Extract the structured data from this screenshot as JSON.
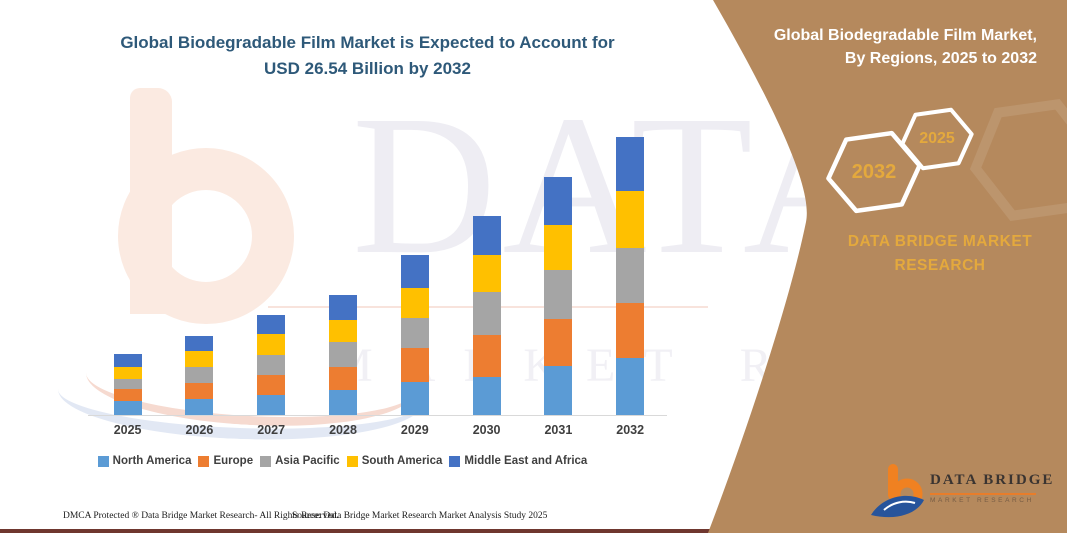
{
  "header": {
    "title_line1": "Global Biodegradable Film Market is Expected to Account for",
    "title_line2": "USD 26.54 Billion by 2032"
  },
  "chart_data": {
    "type": "bar",
    "stacked": true,
    "title": "Global Biodegradable Film Market is Expected to Account for USD 26.54 Billion by 2032",
    "unit": "USD Billion",
    "legend_position": "bottom",
    "y_axis_hidden": true,
    "categories": [
      "2025",
      "2026",
      "2027",
      "2028",
      "2029",
      "2030",
      "2031",
      "2032"
    ],
    "series": [
      {
        "name": "North America",
        "color": "#5B9BD5",
        "values": [
          1.37,
          1.53,
          1.91,
          2.39,
          3.12,
          3.66,
          4.71,
          5.41
        ]
      },
      {
        "name": "Europe",
        "color": "#ED7D31",
        "values": [
          1.12,
          1.49,
          1.91,
          2.23,
          3.25,
          4.02,
          4.47,
          5.3
        ]
      },
      {
        "name": "Asia Pacific",
        "color": "#A5A5A5",
        "values": [
          0.96,
          1.6,
          1.94,
          2.32,
          2.91,
          4.02,
          4.62,
          5.26
        ]
      },
      {
        "name": "South America",
        "color": "#FFC000",
        "values": [
          1.12,
          1.46,
          1.98,
          2.14,
          2.83,
          3.54,
          4.37,
          5.38
        ]
      },
      {
        "name": "Middle East and Africa",
        "color": "#4472C4",
        "values": [
          1.27,
          1.5,
          1.82,
          2.39,
          3.13,
          3.73,
          4.55,
          5.19
        ]
      }
    ],
    "totals": [
      5.84,
      7.58,
      9.56,
      11.47,
      15.24,
      18.97,
      22.72,
      26.54
    ],
    "highlight_value_2032": "USD 26.54 Billion"
  },
  "side_panel": {
    "title_line1": "Global Biodegradable Film Market,",
    "title_line2": "By Regions, 2025 to 2032",
    "hexagon_back_year": "2032",
    "hexagon_front_year": "2025",
    "brand_line1": "DATA BRIDGE MARKET",
    "brand_line2": "RESEARCH"
  },
  "logo": {
    "name": "DATA BRIDGE",
    "tagline": "MARKET RESEARCH"
  },
  "watermark": {
    "line1": "DATA BRIDGE",
    "line2": "MARKET RESEARCH"
  },
  "footer": {
    "dmca": "DMCA Protected ® Data Bridge Market Research-  All Rights Reserved.",
    "source": "Source: Data Bridge Market Research  Market Analysis Study 2025"
  },
  "colors": {
    "panel": "#B5895D",
    "gold": "#E4A93D",
    "title": "#2E5979",
    "label": "#3F3F3F",
    "maroon": "#6F372F",
    "axis": "#D9D9D9"
  }
}
